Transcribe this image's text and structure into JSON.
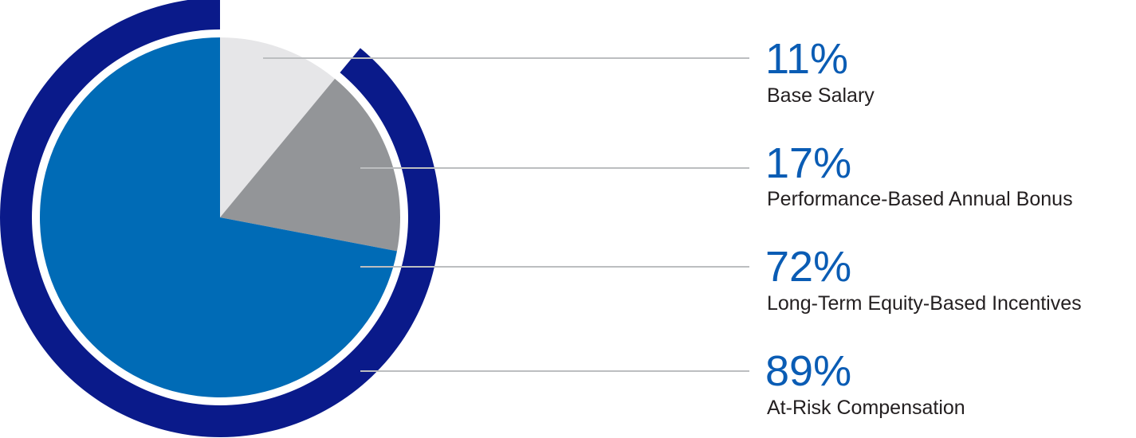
{
  "chart_data": {
    "type": "pie",
    "slices": [
      {
        "label": "Base Salary",
        "value": 11,
        "value_label": "11%",
        "color": "#e6e6e8"
      },
      {
        "label": "Performance-Based Annual Bonus",
        "value": 17,
        "value_label": "17%",
        "color": "#939598"
      },
      {
        "label": "Long-Term Equity-Based Incentives",
        "value": 72,
        "value_label": "72%",
        "color": "#006bb6"
      }
    ],
    "outer_ring": {
      "label": "At-Risk Compensation",
      "value": 89,
      "value_label": "89%",
      "color": "#0a1a8a"
    }
  },
  "colors": {
    "percent_text": "#0a5cb4",
    "label_text": "#231f20",
    "leader_line": "#bcbec0"
  }
}
